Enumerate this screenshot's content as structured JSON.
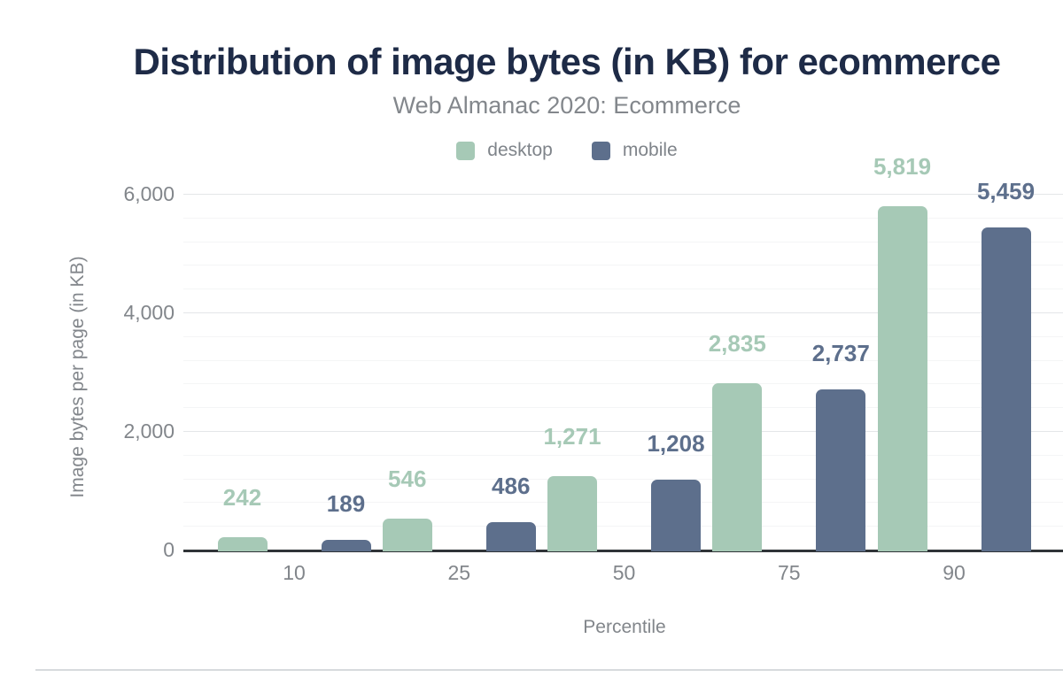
{
  "chart_data": {
    "type": "bar",
    "title": "Distribution of image bytes (in KB) for ecommerce",
    "subtitle": "Web Almanac 2020: Ecommerce",
    "xlabel": "Percentile",
    "ylabel": "Image bytes per page (in KB)",
    "categories": [
      "10",
      "25",
      "50",
      "75",
      "90"
    ],
    "series": [
      {
        "name": "desktop",
        "color": "#a6c9b6",
        "values": [
          242,
          546,
          1271,
          2835,
          5819
        ],
        "labels": [
          "242",
          "546",
          "1,271",
          "2,835",
          "5,819"
        ]
      },
      {
        "name": "mobile",
        "color": "#5d6f8c",
        "values": [
          189,
          486,
          1208,
          2737,
          5459
        ],
        "labels": [
          "189",
          "486",
          "1,208",
          "2,737",
          "5,459"
        ]
      }
    ],
    "ylim": [
      0,
      6000
    ],
    "yticks": [
      {
        "value": 0,
        "label": "0"
      },
      {
        "value": 2000,
        "label": "2,000"
      },
      {
        "value": 4000,
        "label": "4,000"
      },
      {
        "value": 6000,
        "label": "6,000"
      }
    ],
    "minor_grid_step": 400,
    "grid": true,
    "legend_position": "top"
  },
  "colors": {
    "title": "#1e2b47",
    "subtitle": "#83878c",
    "axis_text": "#82868b",
    "axis_line": "#303438",
    "grid_major": "#e4e6e8",
    "grid_minor": "#f4f5f6",
    "background": "#ffffff"
  }
}
